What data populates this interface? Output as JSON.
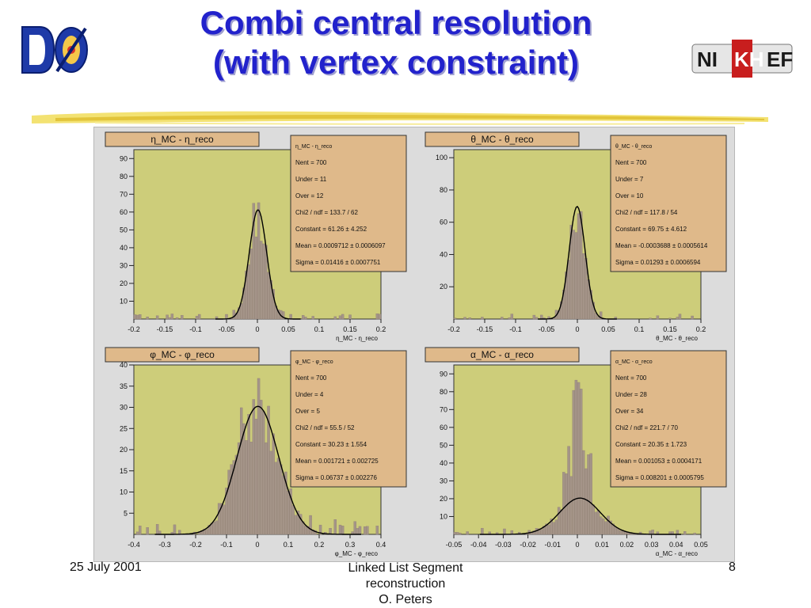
{
  "slide": {
    "title_line1": "Combi central resolution",
    "title_line2": "(with vertex constraint)",
    "footer_date": "25 July 2001",
    "footer_line1": "Linked List Segment",
    "footer_line2": "reconstruction",
    "footer_line3": "O. Peters",
    "page_number": "8",
    "logo_left_text": "DØ",
    "logo_right_text": "NIKHEF"
  },
  "colors": {
    "title": "#2222cc",
    "plot_bg": "#cdcd7a",
    "hist_fill": "#a49488",
    "stats_bg": "#dfb98a",
    "fit_line": "#000000",
    "title_box": "#dfb98a"
  },
  "chart_data": [
    {
      "type": "bar",
      "title": "η_MC - η_reco",
      "title_main": "η",
      "title_sub1": "MC",
      "title_sep": " - η",
      "title_sub2": "reco",
      "xlabel": "η_MC - η_reco",
      "xlim": [
        -0.2,
        0.2
      ],
      "ylim": [
        0,
        95
      ],
      "xticks": [
        "-0.2",
        "-0.15",
        "-0.1",
        "-0.05",
        "0",
        "0.05",
        "0.1",
        "0.15",
        "0.2"
      ],
      "yticks": [
        "10",
        "20",
        "30",
        "40",
        "50",
        "60",
        "70",
        "80",
        "90"
      ],
      "ytick_values": [
        10,
        20,
        30,
        40,
        50,
        60,
        70,
        80,
        90
      ],
      "fit": {
        "constant": 61.26,
        "mean": 0.0009712,
        "sigma": 0.01416
      },
      "stats": [
        {
          "label": "η_MC - η_reco",
          "value": ""
        },
        {
          "label": "Nent = 700",
          "value": ""
        },
        {
          "label": "Under =",
          "value": "11"
        },
        {
          "label": "Over =",
          "value": "12"
        },
        {
          "label": "Chi2 / ndf = 133.7 / 62",
          "value": ""
        },
        {
          "label": "Constant = 61.26 ± 4.252",
          "value": ""
        },
        {
          "label": "Mean",
          "value": "= 0.0009712 ± 0.0006097"
        },
        {
          "label": "Sigma",
          "value": "= 0.01416 ± 0.0007751"
        }
      ]
    },
    {
      "type": "bar",
      "title": "θ_MC - θ_reco",
      "title_main": "θ",
      "title_sub1": "MC",
      "title_sep": " - θ",
      "title_sub2": "reco",
      "xlabel": "θ_MC - θ_reco",
      "xlim": [
        -0.2,
        0.2
      ],
      "ylim": [
        0,
        105
      ],
      "xticks": [
        "-0.2",
        "-0.15",
        "-0.1",
        "-0.05",
        "0",
        "0.05",
        "0.1",
        "0.15",
        "0.2"
      ],
      "yticks": [
        "20",
        "40",
        "60",
        "80",
        "100"
      ],
      "ytick_values": [
        20,
        40,
        60,
        80,
        100
      ],
      "fit": {
        "constant": 69.75,
        "mean": -0.0003688,
        "sigma": 0.01293
      },
      "stats": [
        {
          "label": "θ_MC - θ_reco",
          "value": ""
        },
        {
          "label": "Nent = 700",
          "value": ""
        },
        {
          "label": "Under =",
          "value": "7"
        },
        {
          "label": "Over =",
          "value": "10"
        },
        {
          "label": "Chi2 / ndf = 117.8 / 54",
          "value": ""
        },
        {
          "label": "Constant = 69.75 ± 4.612",
          "value": ""
        },
        {
          "label": "Mean",
          "value": "= -0.0003688 ± 0.0005614"
        },
        {
          "label": "Sigma",
          "value": "= 0.01293 ± 0.0006594"
        }
      ]
    },
    {
      "type": "bar",
      "title": "φ_MC - φ_reco",
      "title_main": "φ",
      "title_sub1": "MC",
      "title_sep": " - φ",
      "title_sub2": "reco",
      "xlabel": "φ_MC - φ_reco",
      "xlim": [
        -0.4,
        0.4
      ],
      "ylim": [
        0,
        40
      ],
      "xticks": [
        "-0.4",
        "-0.3",
        "-0.2",
        "-0.1",
        "0",
        "0.1",
        "0.2",
        "0.3",
        "0.4"
      ],
      "yticks": [
        "5",
        "10",
        "15",
        "20",
        "25",
        "30",
        "35",
        "40"
      ],
      "ytick_values": [
        5,
        10,
        15,
        20,
        25,
        30,
        35,
        40
      ],
      "fit": {
        "constant": 30.23,
        "mean": 0.001721,
        "sigma": 0.06737
      },
      "stats": [
        {
          "label": "φ_MC - φ_reco",
          "value": ""
        },
        {
          "label": "Nent = 700",
          "value": ""
        },
        {
          "label": "Under =",
          "value": "4"
        },
        {
          "label": "Over =",
          "value": "5"
        },
        {
          "label": "Chi2 / ndf = 55.5 / 52",
          "value": ""
        },
        {
          "label": "Constant = 30.23 ± 1.554",
          "value": ""
        },
        {
          "label": "Mean",
          "value": "= 0.001721 ± 0.002725"
        },
        {
          "label": "Sigma",
          "value": "= 0.06737 ± 0.002276"
        }
      ]
    },
    {
      "type": "bar",
      "title": "α_MC - α_reco",
      "title_main": "α",
      "title_sub1": "MC",
      "title_sep": " - α",
      "title_sub2": "reco",
      "xlabel": "α_MC - α_reco",
      "xlim": [
        -0.05,
        0.05
      ],
      "ylim": [
        0,
        95
      ],
      "xticks": [
        "-0.05",
        "-0.04",
        "-0.03",
        "-0.02",
        "-0.01",
        "0",
        "0.01",
        "0.02",
        "0.03",
        "0.04",
        "0.05"
      ],
      "yticks": [
        "10",
        "20",
        "30",
        "40",
        "50",
        "60",
        "70",
        "80",
        "90"
      ],
      "ytick_values": [
        10,
        20,
        30,
        40,
        50,
        60,
        70,
        80,
        90
      ],
      "fit": {
        "constant": 20.35,
        "mean": 0.001053,
        "sigma": 0.008201
      },
      "stats": [
        {
          "label": "α_MC - α_reco",
          "value": ""
        },
        {
          "label": "Nent = 700",
          "value": ""
        },
        {
          "label": "Under =",
          "value": "28"
        },
        {
          "label": "Over =",
          "value": "34"
        },
        {
          "label": "Chi2 / ndf = 221.7 / 70",
          "value": ""
        },
        {
          "label": "Constant = 20.35 ± 1.723",
          "value": ""
        },
        {
          "label": "Mean",
          "value": "= 0.001053 ± 0.0004171"
        },
        {
          "label": "Sigma",
          "value": "= 0.008201 ± 0.0005795"
        }
      ]
    }
  ]
}
